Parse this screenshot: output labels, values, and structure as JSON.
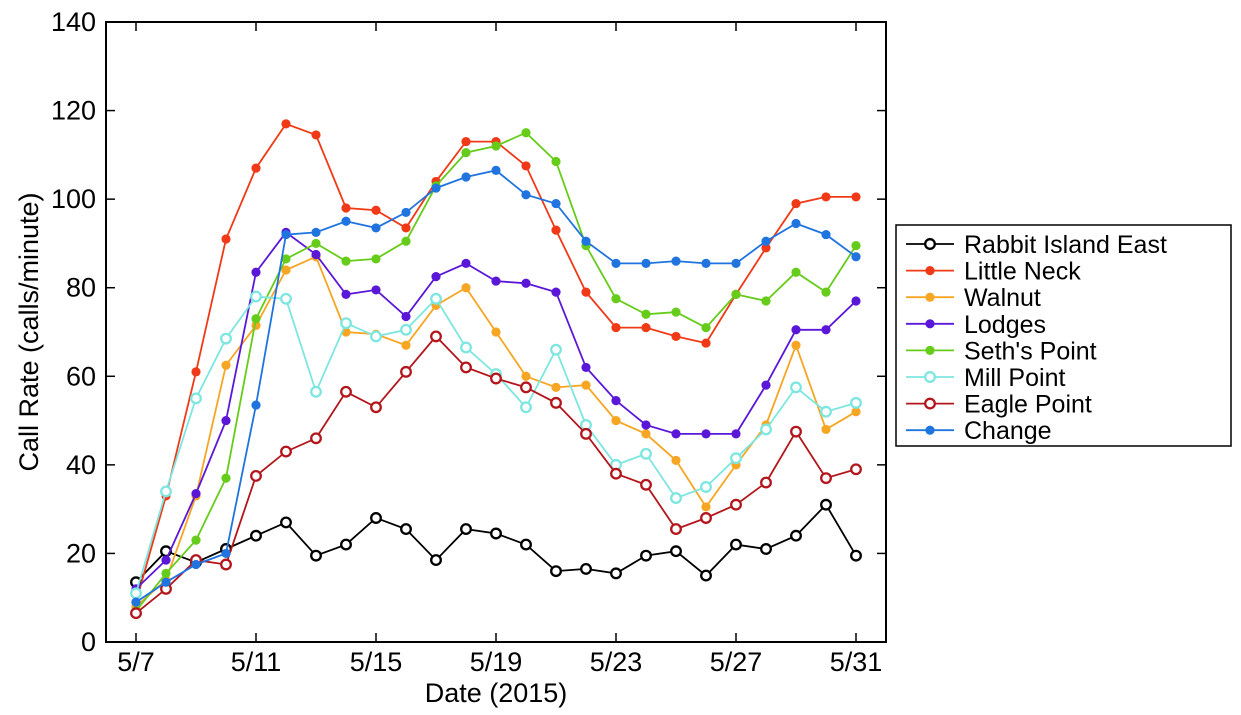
{
  "chart_data": {
    "type": "line",
    "title": "",
    "xlabel": "Date (2015)",
    "ylabel": "Call Rate (calls/minute)",
    "xlim": [
      "2015-05-06",
      "2015-06-01"
    ],
    "ylim": [
      0,
      140
    ],
    "y_ticks": [
      "0",
      "20",
      "40",
      "60",
      "80",
      "100",
      "120",
      "140"
    ],
    "x_ticks": [
      {
        "date": "2015-05-07",
        "label": "5/7"
      },
      {
        "date": "2015-05-11",
        "label": "5/11"
      },
      {
        "date": "2015-05-15",
        "label": "5/15"
      },
      {
        "date": "2015-05-19",
        "label": "5/19"
      },
      {
        "date": "2015-05-23",
        "label": "5/23"
      },
      {
        "date": "2015-05-27",
        "label": "5/27"
      },
      {
        "date": "2015-05-31",
        "label": "5/31"
      }
    ],
    "grid": false,
    "legend_position": "outside-right",
    "x": [
      "2015-05-07",
      "2015-05-08",
      "2015-05-09",
      "2015-05-10",
      "2015-05-11",
      "2015-05-12",
      "2015-05-13",
      "2015-05-14",
      "2015-05-15",
      "2015-05-16",
      "2015-05-17",
      "2015-05-18",
      "2015-05-19",
      "2015-05-20",
      "2015-05-21",
      "2015-05-22",
      "2015-05-23",
      "2015-05-24",
      "2015-05-25",
      "2015-05-26",
      "2015-05-27",
      "2015-05-28",
      "2015-05-29",
      "2015-05-30",
      "2015-05-31"
    ],
    "series": [
      {
        "name": "Rabbit Island East",
        "color": "#000000",
        "marker": "hollow",
        "values": [
          13.5,
          20.5,
          18,
          21,
          24,
          27,
          19.5,
          22,
          28,
          25.5,
          18.5,
          25.5,
          24.5,
          22,
          16,
          16.5,
          15.5,
          19.5,
          20.5,
          15,
          22,
          21,
          24,
          31,
          19.5
        ]
      },
      {
        "name": "Little Neck",
        "color": "#f03a17",
        "marker": "filled",
        "values": [
          9,
          33,
          61,
          91,
          107,
          117,
          114.5,
          98,
          97.5,
          93.5,
          104,
          113,
          113,
          107.5,
          93,
          79,
          71,
          71,
          69,
          67.5,
          78.5,
          89,
          99,
          100.5,
          100.5
        ]
      },
      {
        "name": "Walnut",
        "color": "#f6a623",
        "marker": "filled",
        "values": [
          8,
          14,
          33,
          62.5,
          71.5,
          84,
          87,
          70,
          69.5,
          67,
          76,
          80,
          70,
          60,
          57.5,
          58,
          50,
          47,
          41,
          30.5,
          40,
          49,
          67,
          48,
          52
        ]
      },
      {
        "name": "Lodges",
        "color": "#5b17d8",
        "marker": "filled",
        "values": [
          12,
          18.5,
          33.5,
          50,
          83.5,
          92.5,
          87.5,
          78.5,
          79.5,
          73.5,
          82.5,
          85.5,
          81.5,
          81,
          79,
          62,
          54.5,
          49,
          47,
          47,
          47,
          58,
          70.5,
          70.5,
          77
        ]
      },
      {
        "name": "Seth's Point",
        "color": "#66cc1a",
        "marker": "filled",
        "values": [
          7,
          15.5,
          23,
          37,
          73,
          86.5,
          90,
          86,
          86.5,
          90.5,
          103,
          110.5,
          112,
          115,
          108.5,
          89.5,
          77.5,
          74,
          74.5,
          71,
          78.5,
          77,
          83.5,
          79,
          89.5
        ]
      },
      {
        "name": "Mill Point",
        "color": "#7de6e0",
        "marker": "hollow",
        "values": [
          11,
          34,
          55,
          68.5,
          78,
          77.5,
          56.5,
          72,
          69,
          70.5,
          77.5,
          66.5,
          60.5,
          53,
          66,
          49,
          40,
          42.5,
          32.5,
          35,
          41.5,
          48,
          57.5,
          52,
          54
        ]
      },
      {
        "name": "Eagle Point",
        "color": "#b3161c",
        "marker": "hollow",
        "values": [
          6.5,
          12,
          18.5,
          17.5,
          37.5,
          43,
          46,
          56.5,
          53,
          61,
          69,
          62,
          59.5,
          57.5,
          54,
          47,
          38,
          35.5,
          25.5,
          28,
          31,
          36,
          47.5,
          37,
          39
        ]
      },
      {
        "name": "Change",
        "color": "#1f74e0",
        "marker": "filled",
        "values": [
          9,
          13.5,
          17.5,
          20,
          53.5,
          92,
          92.5,
          95,
          93.5,
          97,
          102.5,
          105,
          106.5,
          101,
          99,
          90.5,
          85.5,
          85.5,
          86,
          85.5,
          85.5,
          90.5,
          94.5,
          92,
          87
        ]
      }
    ]
  }
}
